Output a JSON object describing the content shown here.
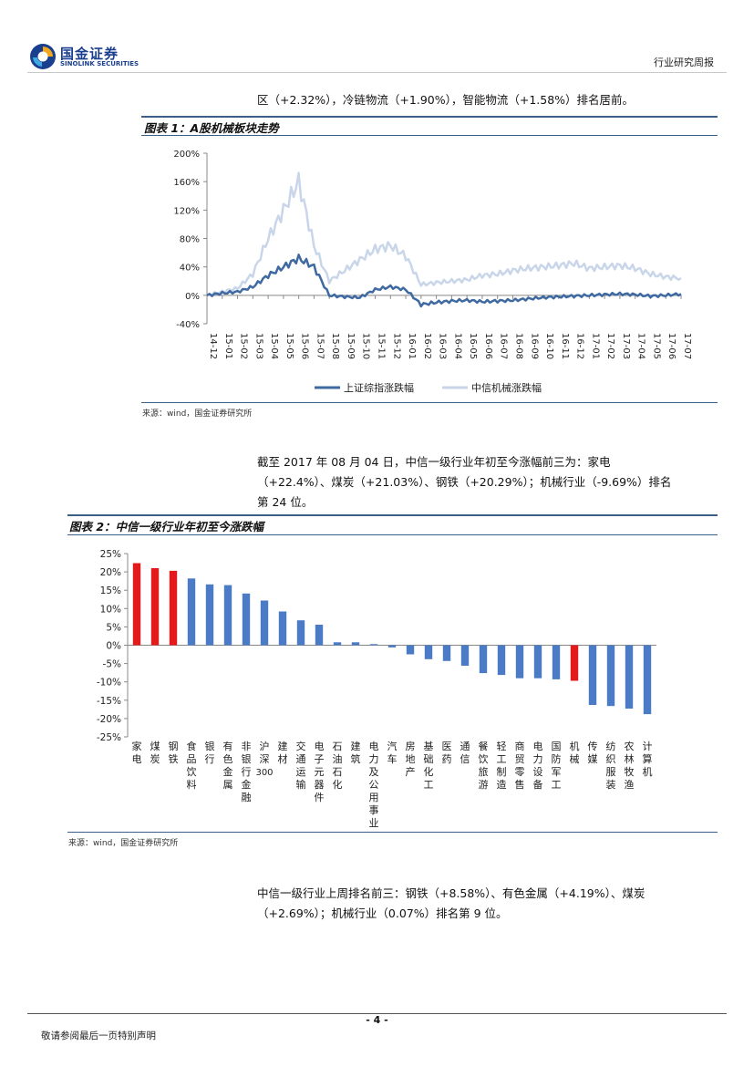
{
  "header": {
    "logo_cn": "国金证券",
    "logo_en": "SINOLINK SECURITIES",
    "report_type": "行业研究周报"
  },
  "intro_line": "区（+2.32%），冷链物流（+1.90%），智能物流（+1.58%）排名居前。",
  "figure1": {
    "title": "图表 1：A股机械板块走势",
    "source": "来源：wind，国金证券研究所"
  },
  "paragraph2": {
    "line1": "截至 2017 年 08 月 04 日，中信一级行业年初至今涨幅前三为：家电",
    "line2": "（+22.4%）、煤炭（+21.03%）、钢铁（+20.29%）；机械行业（-9.69%）排名",
    "line3": "第 24 位。"
  },
  "figure2": {
    "title": "图表 2：中信一级行业年初至今涨跌幅",
    "source": "来源：wind，国金证券研究所"
  },
  "paragraph3": {
    "line1": "中信一级行业上周排名前三：钢铁（+8.58%）、有色金属（+4.19%）、煤炭",
    "line2": "（+2.69%）；机械行业（0.07%）排名第 9 位。"
  },
  "footer": {
    "page_number": "- 4 -",
    "disclaimer": "敬请参阅最后一页特别声明"
  },
  "colors": {
    "brand_blue": "#1b3f8f",
    "series_dark": "#3f6aa1",
    "series_light": "#c9d6ea",
    "bar_blue": "#4a7bc4",
    "bar_red": "#e3191c",
    "rule_blue": "#3b5f86"
  },
  "chart_data": [
    {
      "type": "line",
      "title": "图表 1：A股机械板块走势",
      "xlabel": "",
      "ylabel": "",
      "ylim": [
        -40,
        200
      ],
      "yticks": [
        -40,
        0,
        40,
        80,
        120,
        160,
        200
      ],
      "ytick_labels": [
        "-40%",
        "0%",
        "40%",
        "80%",
        "120%",
        "160%",
        "200%"
      ],
      "x": [
        "14-12",
        "15-01",
        "15-02",
        "15-03",
        "15-04",
        "15-05",
        "15-06",
        "15-07",
        "15-08",
        "15-09",
        "15-10",
        "15-11",
        "15-12",
        "16-01",
        "16-02",
        "16-03",
        "16-04",
        "16-05",
        "16-06",
        "16-07",
        "16-08",
        "16-09",
        "16-10",
        "16-11",
        "16-12",
        "17-01",
        "17-02",
        "17-03",
        "17-04",
        "17-05",
        "17-06",
        "17-07"
      ],
      "legend_position": "bottom",
      "series": [
        {
          "name": "上证综指涨跌幅",
          "values": [
            0,
            3,
            5,
            12,
            28,
            40,
            52,
            40,
            0,
            -2,
            -3,
            8,
            12,
            8,
            -13,
            -10,
            -8,
            -7,
            -9,
            -8,
            -7,
            -5,
            -3,
            -2,
            -1,
            0,
            1,
            2,
            1,
            -1,
            0,
            2
          ]
        },
        {
          "name": "中信机械涨跌幅",
          "values": [
            0,
            5,
            10,
            30,
            80,
            120,
            160,
            70,
            20,
            35,
            50,
            65,
            70,
            55,
            15,
            18,
            20,
            22,
            28,
            30,
            35,
            38,
            40,
            42,
            45,
            38,
            40,
            42,
            38,
            30,
            26,
            24
          ]
        }
      ]
    },
    {
      "type": "bar",
      "title": "图表 2：中信一级行业年初至今涨跌幅",
      "xlabel": "",
      "ylabel": "",
      "ylim": [
        -25,
        25
      ],
      "yticks": [
        -25,
        -20,
        -15,
        -10,
        -5,
        0,
        5,
        10,
        15,
        20,
        25
      ],
      "ytick_labels": [
        "-25%",
        "-20%",
        "-15%",
        "-10%",
        "-5%",
        "0%",
        "5%",
        "10%",
        "15%",
        "20%",
        "25%"
      ],
      "categories": [
        "家电",
        "煤炭",
        "钢铁",
        "食品饮料",
        "银行",
        "有色金属",
        "非银行金融",
        "沪深300",
        "建材",
        "交通运输",
        "电子元器件",
        "石油石化",
        "建筑",
        "电力及公用事业",
        "汽车",
        "房地产",
        "基础化工",
        "医药",
        "通信",
        "餐饮旅游",
        "轻工制造",
        "商贸零售",
        "电力设备",
        "国防军工",
        "机械",
        "传媒",
        "纺织服装",
        "农林牧渔",
        "计算机"
      ],
      "values": [
        22.4,
        21.03,
        20.29,
        18.2,
        16.6,
        16.4,
        14.1,
        12.2,
        9.2,
        6.8,
        5.6,
        0.8,
        0.8,
        0.3,
        -0.6,
        -2.5,
        -3.8,
        -4.3,
        -5.6,
        -7.6,
        -8.1,
        -9.0,
        -9.0,
        -9.3,
        -9.69,
        -16.3,
        -16.6,
        -17.3,
        -18.8
      ],
      "highlight": [
        "家电",
        "煤炭",
        "钢铁",
        "机械"
      ],
      "legend_position": "none"
    }
  ]
}
